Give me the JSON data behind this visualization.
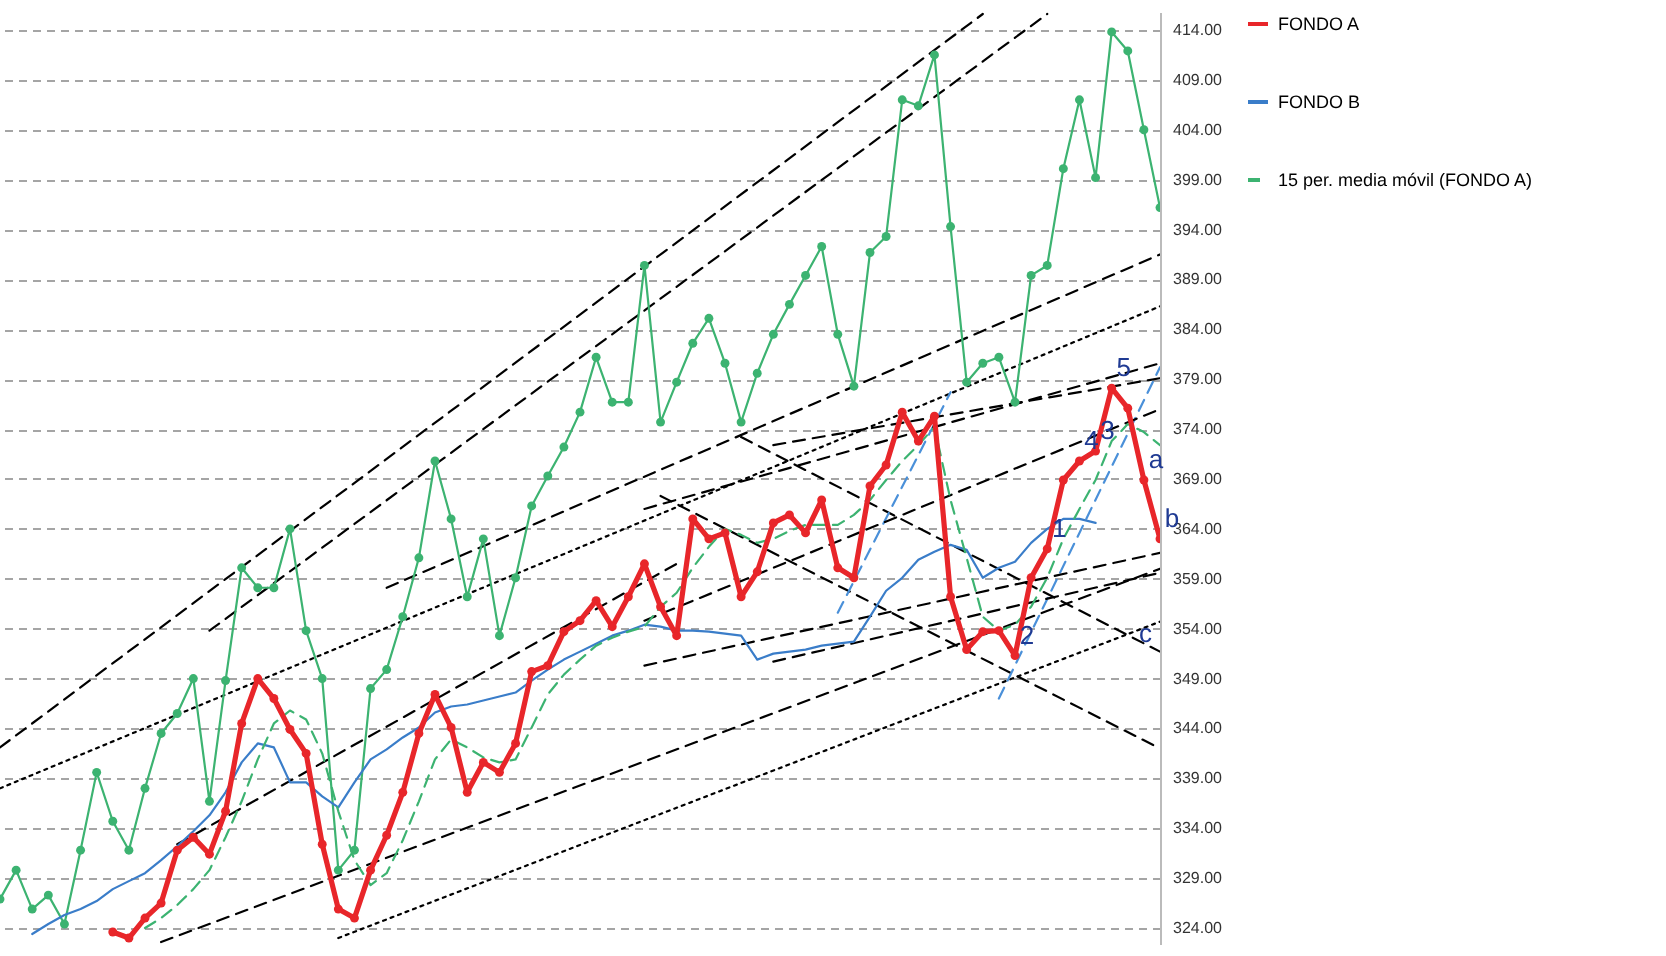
{
  "chart_data": {
    "type": "line",
    "categories": [
      null,
      null,
      null,
      null,
      null,
      null,
      null,
      null,
      null,
      null,
      null,
      null,
      null,
      null,
      null,
      null,
      null,
      null,
      null,
      null,
      null,
      null,
      null,
      null,
      null,
      null,
      null,
      null,
      null,
      null,
      null,
      null,
      null,
      null,
      null,
      null,
      null,
      null,
      null,
      null,
      null,
      null,
      null,
      null,
      null,
      null,
      null,
      null,
      null,
      null,
      null,
      null,
      null,
      null,
      null,
      null,
      null,
      null,
      null,
      null,
      null,
      null,
      null,
      null,
      null,
      null,
      null,
      null,
      null,
      null,
      null,
      null,
      null
    ],
    "ylim": [
      322.4,
      415.8
    ],
    "yticks": [
      {
        "value": 324,
        "label": "324.00"
      },
      {
        "value": 329,
        "label": "329.00"
      },
      {
        "value": 334,
        "label": "334.00"
      },
      {
        "value": 339,
        "label": "339.00"
      },
      {
        "value": 344,
        "label": "344.00"
      },
      {
        "value": 349,
        "label": "349.00"
      },
      {
        "value": 354,
        "label": "354.00"
      },
      {
        "value": 359,
        "label": "359.00"
      },
      {
        "value": 364,
        "label": "364.00"
      },
      {
        "value": 369,
        "label": "369.00"
      },
      {
        "value": 374,
        "label": "374.00"
      },
      {
        "value": 379,
        "label": "379.00"
      },
      {
        "value": 384,
        "label": "384.00"
      },
      {
        "value": 389,
        "label": "389.00"
      },
      {
        "value": 394,
        "label": "394.00"
      },
      {
        "value": 399,
        "label": "399.00"
      },
      {
        "value": 404,
        "label": "404.00"
      },
      {
        "value": 409,
        "label": "409.00"
      },
      {
        "value": 414,
        "label": "414.00"
      }
    ],
    "grid": "y",
    "legend": "right",
    "tick_labels": "y",
    "line_style": "solid",
    "annotations": [
      {
        "text": "1",
        "y": 362.0
      },
      {
        "text": "2",
        "y": 351.3
      },
      {
        "text": "3",
        "y": 371.8
      },
      {
        "text": "4",
        "y": 370.8
      },
      {
        "text": "5",
        "y": 378.1
      },
      {
        "text": "a",
        "y": 368.9
      },
      {
        "text": "b",
        "y": 363.0
      },
      "c"
    ],
    "series": [
      {
        "color": "#000000",
        "line_style": "dashed",
        "values": [
          342.1,
          null,
          null,
          null,
          null,
          null,
          null,
          null,
          null,
          null,
          null,
          null,
          null,
          null,
          null,
          null,
          null,
          null,
          null,
          null,
          null,
          null,
          null,
          null,
          null,
          null,
          null,
          null,
          null,
          null,
          null,
          null,
          null,
          null,
          null,
          null,
          null,
          null,
          null,
          null,
          null,
          null,
          null,
          null,
          null,
          null,
          null,
          null,
          null,
          null,
          null,
          null,
          null,
          null,
          null,
          null,
          null,
          null,
          null,
          null,
          null,
          415.6,
          null,
          null,
          null,
          null,
          null,
          null,
          null,
          null,
          null,
          null,
          null
        ]
      },
      {
        "color": "#000000",
        "line_style": "dashed",
        "values": [
          null,
          null,
          null,
          null,
          null,
          null,
          null,
          null,
          null,
          null,
          null,
          null,
          null,
          353.8,
          null,
          null,
          null,
          null,
          null,
          null,
          null,
          null,
          null,
          null,
          null,
          null,
          null,
          null,
          null,
          null,
          null,
          null,
          null,
          null,
          null,
          null,
          null,
          null,
          null,
          null,
          null,
          null,
          null,
          null,
          null,
          null,
          null,
          null,
          null,
          null,
          null,
          null,
          null,
          null,
          null,
          null,
          null,
          null,
          null,
          null,
          null,
          null,
          null,
          null,
          null,
          415.6,
          null,
          null,
          null,
          null,
          null,
          null,
          null
        ]
      },
      {
        "color": "#000000",
        "line_style": "dashed",
        "values": [
          null,
          null,
          null,
          null,
          null,
          null,
          null,
          null,
          null,
          null,
          null,
          null,
          null,
          null,
          null,
          null,
          null,
          null,
          null,
          null,
          null,
          null,
          null,
          null,
          358.1,
          null,
          null,
          null,
          null,
          null,
          null,
          null,
          null,
          null,
          null,
          null,
          null,
          null,
          null,
          null,
          null,
          null,
          null,
          null,
          null,
          null,
          null,
          null,
          null,
          null,
          null,
          null,
          null,
          null,
          null,
          null,
          null,
          null,
          null,
          null,
          null,
          null,
          null,
          null,
          null,
          null,
          null,
          null,
          null,
          null,
          null,
          null,
          391.5
        ]
      },
      {
        "color": "#000000",
        "line_style": "dotted",
        "values": [
          338.0,
          null,
          null,
          null,
          null,
          null,
          null,
          null,
          null,
          null,
          null,
          null,
          null,
          null,
          null,
          null,
          null,
          null,
          null,
          null,
          null,
          null,
          null,
          null,
          null,
          null,
          null,
          null,
          null,
          null,
          null,
          null,
          null,
          null,
          null,
          null,
          null,
          null,
          null,
          null,
          null,
          null,
          null,
          null,
          null,
          null,
          null,
          null,
          null,
          null,
          null,
          null,
          null,
          null,
          null,
          null,
          null,
          null,
          null,
          null,
          null,
          null,
          null,
          null,
          null,
          null,
          null,
          null,
          null,
          null,
          null,
          null,
          386.3
        ]
      },
      {
        "color": "#000000",
        "line_style": "dotted",
        "values": [
          null,
          null,
          null,
          null,
          null,
          null,
          null,
          null,
          null,
          null,
          null,
          null,
          null,
          null,
          null,
          null,
          null,
          null,
          null,
          null,
          null,
          323.0,
          null,
          null,
          null,
          null,
          null,
          null,
          null,
          null,
          null,
          null,
          null,
          null,
          null,
          null,
          null,
          null,
          null,
          null,
          null,
          null,
          null,
          null,
          null,
          null,
          null,
          null,
          null,
          null,
          null,
          null,
          null,
          null,
          null,
          null,
          null,
          null,
          null,
          null,
          null,
          null,
          null,
          null,
          null,
          null,
          null,
          null,
          null,
          null,
          null,
          null,
          354.7
        ]
      },
      {
        "color": "#000000",
        "line_style": "dashed",
        "values": [
          null,
          null,
          null,
          null,
          null,
          null,
          null,
          null,
          null,
          null,
          322.6,
          null,
          null,
          null,
          null,
          null,
          null,
          null,
          null,
          null,
          null,
          null,
          null,
          null,
          null,
          null,
          null,
          null,
          null,
          null,
          null,
          null,
          null,
          null,
          null,
          null,
          null,
          null,
          null,
          null,
          null,
          null,
          null,
          null,
          null,
          null,
          null,
          null,
          null,
          null,
          null,
          null,
          null,
          null,
          null,
          null,
          null,
          null,
          null,
          null,
          null,
          null,
          null,
          null,
          null,
          null,
          null,
          null,
          null,
          null,
          null,
          null,
          360.0
        ]
      },
      {
        "color": "#000000",
        "line_style": "dashed",
        "values": [
          null,
          null,
          null,
          null,
          null,
          null,
          null,
          null,
          null,
          null,
          null,
          332.4,
          null,
          null,
          null,
          null,
          null,
          null,
          null,
          null,
          null,
          null,
          null,
          null,
          null,
          null,
          null,
          null,
          null,
          null,
          null,
          null,
          null,
          null,
          null,
          null,
          null,
          null,
          null,
          null,
          null,
          null,
          360.5,
          null,
          null,
          null,
          null,
          null,
          null,
          null,
          null,
          null,
          null,
          null,
          null,
          null,
          null,
          null,
          null,
          null,
          null,
          null,
          null,
          null,
          null,
          null,
          null,
          null,
          null,
          null,
          null,
          null,
          null
        ]
      },
      {
        "color": "#000000",
        "line_style": "dashed",
        "values": [
          null,
          null,
          null,
          null,
          null,
          null,
          null,
          null,
          null,
          null,
          null,
          null,
          null,
          null,
          null,
          null,
          null,
          null,
          null,
          null,
          null,
          null,
          null,
          null,
          null,
          null,
          null,
          null,
          null,
          null,
          null,
          null,
          null,
          null,
          null,
          null,
          null,
          null,
          null,
          null,
          null,
          null,
          null,
          null,
          null,
          null,
          373.2,
          null,
          null,
          null,
          null,
          null,
          null,
          null,
          null,
          null,
          null,
          null,
          null,
          null,
          null,
          null,
          null,
          null,
          null,
          null,
          null,
          null,
          null,
          null,
          null,
          null,
          351.7
        ]
      },
      {
        "color": "#000000",
        "line_style": "dashed",
        "values": [
          null,
          null,
          null,
          null,
          null,
          null,
          null,
          null,
          null,
          null,
          null,
          null,
          null,
          null,
          null,
          null,
          null,
          null,
          null,
          null,
          null,
          null,
          null,
          null,
          null,
          null,
          null,
          null,
          null,
          null,
          null,
          null,
          null,
          null,
          null,
          null,
          null,
          null,
          null,
          null,
          null,
          367.3,
          null,
          null,
          null,
          null,
          null,
          null,
          null,
          null,
          null,
          null,
          null,
          null,
          null,
          null,
          null,
          null,
          null,
          null,
          null,
          null,
          null,
          null,
          null,
          null,
          null,
          null,
          null,
          null,
          null,
          null,
          342.0
        ]
      },
      {
        "color": "#4a90d9",
        "line_style": "dashed",
        "values": [
          null,
          null,
          null,
          null,
          null,
          null,
          null,
          null,
          null,
          null,
          null,
          null,
          null,
          null,
          null,
          null,
          null,
          null,
          null,
          null,
          null,
          null,
          null,
          null,
          null,
          null,
          null,
          null,
          null,
          null,
          null,
          null,
          null,
          null,
          null,
          null,
          null,
          null,
          null,
          null,
          null,
          null,
          null,
          null,
          null,
          null,
          null,
          null,
          null,
          null,
          null,
          null,
          355.6,
          null,
          null,
          null,
          null,
          null,
          null,
          377.7,
          null,
          null,
          null,
          null,
          null,
          null,
          null,
          null,
          null,
          null,
          null,
          null,
          null
        ]
      },
      {
        "color": "#4a90d9",
        "line_style": "dashed",
        "values": [
          null,
          null,
          null,
          null,
          null,
          null,
          null,
          null,
          null,
          null,
          null,
          null,
          null,
          null,
          null,
          null,
          null,
          null,
          null,
          null,
          null,
          null,
          null,
          null,
          null,
          null,
          null,
          null,
          null,
          null,
          null,
          null,
          null,
          null,
          null,
          null,
          null,
          null,
          null,
          null,
          null,
          null,
          null,
          null,
          null,
          null,
          null,
          null,
          null,
          null,
          null,
          null,
          null,
          null,
          null,
          null,
          null,
          null,
          null,
          null,
          null,
          null,
          347.0,
          null,
          null,
          null,
          null,
          null,
          null,
          null,
          null,
          null,
          380.2
        ]
      },
      {
        "color": "#000000",
        "line_style": "dashed",
        "values": [
          null,
          null,
          null,
          null,
          null,
          null,
          null,
          null,
          null,
          null,
          null,
          null,
          null,
          null,
          null,
          null,
          null,
          null,
          null,
          null,
          null,
          null,
          null,
          null,
          null,
          null,
          null,
          null,
          null,
          null,
          null,
          null,
          null,
          null,
          null,
          null,
          null,
          null,
          null,
          null,
          null,
          null,
          null,
          null,
          null,
          null,
          null,
          null,
          372.4,
          null,
          null,
          null,
          null,
          null,
          null,
          null,
          null,
          null,
          null,
          null,
          null,
          null,
          null,
          null,
          null,
          null,
          null,
          null,
          null,
          null,
          null,
          null,
          379.1
        ]
      },
      {
        "color": "#000000",
        "line_style": "dashed",
        "values": [
          null,
          null,
          null,
          null,
          null,
          null,
          null,
          null,
          null,
          null,
          null,
          null,
          null,
          null,
          null,
          null,
          null,
          null,
          null,
          null,
          null,
          null,
          null,
          null,
          null,
          null,
          null,
          null,
          null,
          null,
          null,
          null,
          null,
          null,
          null,
          null,
          null,
          null,
          null,
          null,
          366.0,
          null,
          null,
          null,
          null,
          null,
          null,
          null,
          null,
          null,
          null,
          null,
          null,
          null,
          null,
          null,
          null,
          null,
          null,
          null,
          null,
          null,
          null,
          null,
          null,
          null,
          null,
          null,
          null,
          null,
          null,
          null,
          380.6
        ]
      },
      {
        "color": "#000000",
        "line_style": "dashed",
        "values": [
          null,
          null,
          null,
          null,
          null,
          null,
          null,
          null,
          null,
          null,
          null,
          null,
          null,
          null,
          null,
          null,
          null,
          null,
          null,
          null,
          null,
          null,
          null,
          null,
          null,
          null,
          null,
          null,
          null,
          null,
          null,
          null,
          null,
          null,
          null,
          null,
          null,
          null,
          null,
          null,
          354.8,
          null,
          null,
          null,
          null,
          null,
          null,
          null,
          null,
          null,
          null,
          null,
          null,
          null,
          null,
          null,
          null,
          null,
          null,
          null,
          null,
          null,
          null,
          null,
          null,
          null,
          null,
          null,
          null,
          null,
          null,
          null,
          376.0
        ]
      },
      {
        "color": "#000000",
        "line_style": "dashed",
        "values": [
          null,
          null,
          null,
          null,
          null,
          null,
          null,
          null,
          null,
          null,
          null,
          null,
          null,
          null,
          null,
          null,
          null,
          null,
          null,
          null,
          null,
          null,
          null,
          null,
          null,
          null,
          null,
          null,
          null,
          null,
          null,
          null,
          null,
          null,
          null,
          null,
          null,
          null,
          null,
          null,
          350.3,
          null,
          null,
          null,
          null,
          null,
          null,
          null,
          null,
          null,
          null,
          null,
          null,
          null,
          null,
          null,
          null,
          null,
          null,
          null,
          null,
          null,
          null,
          null,
          null,
          null,
          null,
          null,
          null,
          null,
          null,
          null,
          361.6
        ]
      },
      {
        "color": "#000000",
        "line_style": "dashed",
        "values": [
          null,
          null,
          null,
          null,
          null,
          null,
          null,
          null,
          null,
          null,
          null,
          null,
          null,
          null,
          null,
          null,
          null,
          null,
          null,
          null,
          null,
          null,
          null,
          null,
          null,
          null,
          null,
          null,
          null,
          null,
          null,
          null,
          null,
          null,
          null,
          null,
          null,
          null,
          null,
          null,
          null,
          null,
          null,
          null,
          null,
          null,
          null,
          null,
          350.7,
          null,
          null,
          null,
          null,
          null,
          null,
          null,
          null,
          null,
          null,
          null,
          null,
          null,
          null,
          null,
          null,
          null,
          null,
          null,
          null,
          null,
          null,
          null,
          359.6
        ]
      },
      {
        "color": "#3cb371",
        "marker": "circle",
        "values": [
          326.9,
          329.8,
          325.9,
          327.3,
          324.4,
          331.8,
          339.6,
          334.7,
          331.8,
          338.0,
          343.5,
          345.5,
          349.0,
          336.7,
          348.8,
          360.1,
          358.1,
          358.1,
          364.0,
          353.8,
          349.0,
          329.8,
          331.8,
          348.0,
          349.9,
          355.2,
          361.1,
          370.8,
          365.0,
          357.2,
          363.0,
          353.3,
          359.1,
          366.3,
          369.3,
          372.2,
          375.7,
          381.2,
          376.7,
          376.7,
          390.4,
          374.7,
          378.7,
          382.6,
          385.1,
          380.6,
          374.7,
          379.6,
          383.5,
          386.5,
          389.4,
          392.3,
          383.5,
          378.3,
          391.7,
          393.3,
          407.0,
          406.4,
          411.5,
          394.3,
          378.7,
          380.6,
          381.2,
          376.7,
          389.4,
          390.4,
          400.1,
          407.0,
          399.2,
          413.8,
          411.9,
          404.0,
          396.2
        ]
      },
      {
        "name": "FONDO A",
        "color": "#e8262a",
        "marker": "circle",
        "values": [
          null,
          null,
          null,
          null,
          null,
          null,
          null,
          323.6,
          323.0,
          325.0,
          326.5,
          331.8,
          333.1,
          331.4,
          335.7,
          344.5,
          349.0,
          347.0,
          343.9,
          341.5,
          332.4,
          325.9,
          325.0,
          329.8,
          333.3,
          337.6,
          343.5,
          347.4,
          344.1,
          337.6,
          340.6,
          339.6,
          342.5,
          349.7,
          350.3,
          353.7,
          354.8,
          356.8,
          354.2,
          357.2,
          360.5,
          356.2,
          353.3,
          365.0,
          363.0,
          363.6,
          357.2,
          359.7,
          364.6,
          365.4,
          363.6,
          366.9,
          360.1,
          359.1,
          368.3,
          370.4,
          375.7,
          372.8,
          375.3,
          357.2,
          351.9,
          353.7,
          353.8,
          351.3,
          359.1,
          362.0,
          368.9,
          370.8,
          371.8,
          378.1,
          376.1,
          368.9,
          363.0
        ]
      },
      {
        "name": "FONDO B",
        "color": "#3a7dc9",
        "values": [
          null,
          null,
          323.4,
          324.4,
          325.3,
          325.9,
          326.7,
          327.9,
          328.7,
          329.5,
          330.8,
          332.2,
          333.7,
          335.3,
          337.6,
          340.6,
          342.5,
          342.1,
          338.6,
          338.6,
          337.2,
          336.1,
          338.6,
          340.9,
          341.9,
          343.1,
          344.1,
          345.6,
          346.2,
          346.4,
          346.8,
          347.2,
          347.6,
          348.8,
          349.9,
          350.9,
          351.7,
          352.5,
          353.3,
          353.8,
          354.4,
          354.2,
          353.8,
          353.8,
          353.7,
          353.5,
          353.3,
          350.9,
          351.5,
          351.7,
          351.9,
          352.3,
          352.5,
          352.7,
          355.2,
          357.8,
          359.1,
          360.9,
          361.7,
          362.4,
          361.9,
          359.1,
          360.1,
          360.7,
          362.6,
          364.0,
          365.0,
          365.0,
          364.6,
          null,
          null,
          null,
          null
        ]
      },
      {
        "name": "15 per. media móvil (FONDO A)",
        "color": "#3cb371",
        "line_style": "dashed",
        "values": [
          null,
          null,
          null,
          null,
          null,
          null,
          null,
          null,
          null,
          324.0,
          325.0,
          326.3,
          327.9,
          329.8,
          333.1,
          336.7,
          340.9,
          344.5,
          345.8,
          344.9,
          341.5,
          335.7,
          330.8,
          328.3,
          329.5,
          332.8,
          336.7,
          340.9,
          342.9,
          342.1,
          341.1,
          340.6,
          340.9,
          344.1,
          347.4,
          349.4,
          350.9,
          352.3,
          353.1,
          353.7,
          354.2,
          356.2,
          357.6,
          360.1,
          362.2,
          364.0,
          363.4,
          362.6,
          363.0,
          363.8,
          364.4,
          364.4,
          364.4,
          365.4,
          366.9,
          368.9,
          370.8,
          372.4,
          374.2,
          366.9,
          361.1,
          355.2,
          353.8,
          354.4,
          356.2,
          359.1,
          363.0,
          366.0,
          368.9,
          372.8,
          374.5,
          373.7,
          372.4
        ]
      }
    ]
  }
}
